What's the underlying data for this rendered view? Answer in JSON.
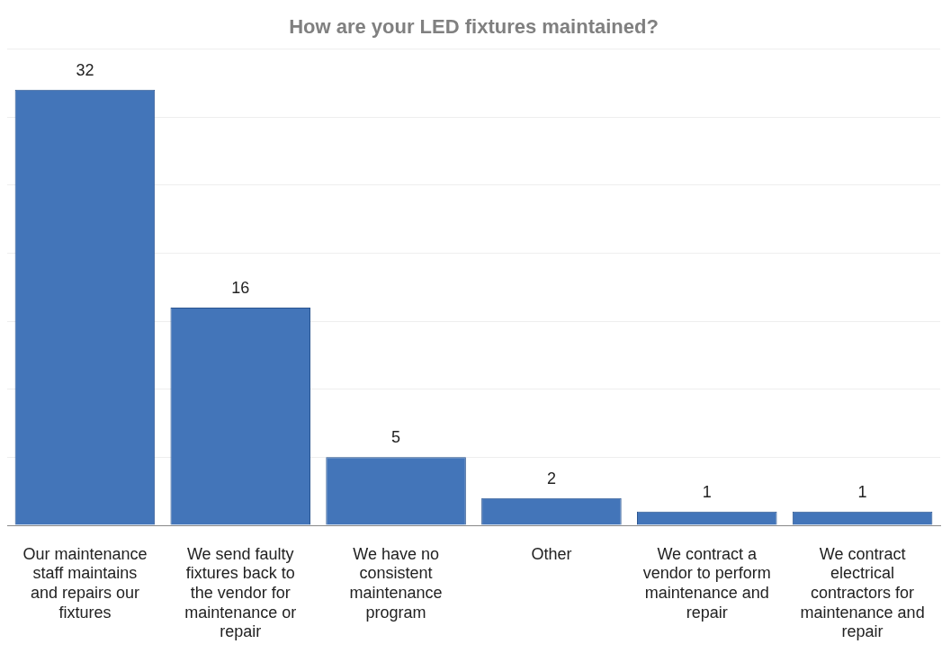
{
  "chart_data": {
    "type": "bar",
    "title": "How are your LED fixtures maintained?",
    "categories": [
      "Our maintenance staff maintains and repairs our fixtures",
      "We send faulty fixtures back to the vendor for maintenance or repair",
      "We have no consistent maintenance program",
      "Other",
      "We contract a vendor to perform maintenance and repair",
      "We contract electrical contractors for maintenance and repair"
    ],
    "values": [
      32,
      16,
      5,
      2,
      1,
      1
    ],
    "color": "#4375b9",
    "ylim": [
      0,
      35
    ],
    "yticks": [
      {
        "value": 0,
        "label": null
      },
      {
        "value": 5,
        "label": null
      },
      {
        "value": 10,
        "label": null
      },
      {
        "value": 15,
        "label": null
      },
      {
        "value": 20,
        "label": null
      },
      {
        "value": 25,
        "label": null
      },
      {
        "value": 30,
        "label": null
      },
      {
        "value": 35,
        "label": null
      }
    ],
    "grid": "y",
    "tick_labels": "x",
    "data_labels": true,
    "legend": false
  }
}
